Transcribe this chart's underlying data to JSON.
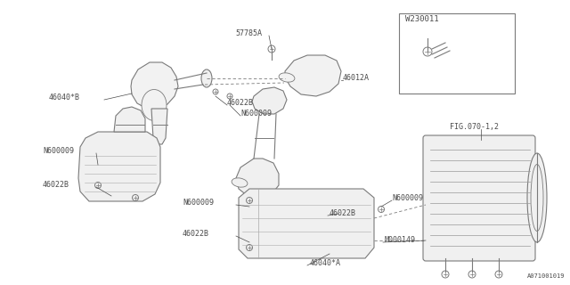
{
  "bg_color": "#ffffff",
  "line_color": "#7a7a7a",
  "text_color": "#4a4a4a",
  "fig_ref": "A071001019",
  "inset_label": "W230011",
  "fig_label": "FIG.070-1,2",
  "label_fs": 6.0,
  "fig_w": 6.4,
  "fig_h": 3.2
}
